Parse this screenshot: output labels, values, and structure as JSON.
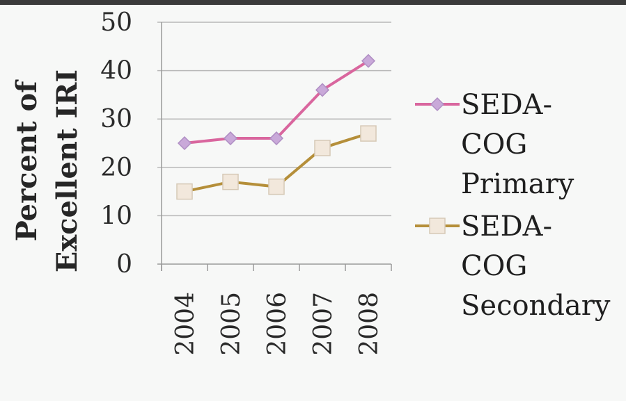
{
  "chart_data": {
    "type": "line",
    "categories": [
      "2004",
      "2005",
      "2006",
      "2007",
      "2008"
    ],
    "series": [
      {
        "name": "SEDA-COG Primary",
        "values": [
          25,
          26,
          26,
          36,
          42
        ],
        "color": "#d9669e",
        "marker": "diamond",
        "marker_fill": "#c9a9d9"
      },
      {
        "name": "SEDA-COG Secondary",
        "values": [
          15,
          17,
          16,
          24,
          27
        ],
        "color": "#b58f3a",
        "marker": "square",
        "marker_fill": "#f2e8dc"
      }
    ],
    "y_ticks": [
      "0",
      "10",
      "20",
      "30",
      "40",
      "50"
    ],
    "ylabel_lines": [
      "Percent of",
      "Excellent IRI"
    ],
    "ylim": [
      0,
      50
    ],
    "grid": true,
    "legend_position": "right",
    "legend_lines": [
      [
        "SEDA-",
        "COG",
        "Primary"
      ],
      [
        "SEDA-",
        "COG",
        "Secondary"
      ]
    ]
  }
}
